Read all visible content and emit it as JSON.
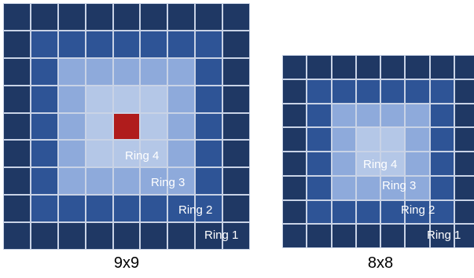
{
  "colors": {
    "ring1": "#1f3864",
    "ring2": "#2e5496",
    "ring3": "#8eaadb",
    "ring4": "#b4c7e7",
    "center": "#b01c1c"
  },
  "diagrams": [
    {
      "id": "grid9",
      "size": 9,
      "caption": "9x9",
      "has_center": true,
      "ring_labels": [
        "Ring 1",
        "Ring 2",
        "Ring 3",
        "Ring 4"
      ]
    },
    {
      "id": "grid8",
      "size": 8,
      "caption": "8x8",
      "has_center": false,
      "ring_labels": [
        "Ring 1",
        "Ring 2",
        "Ring 3",
        "Ring 4"
      ]
    }
  ]
}
